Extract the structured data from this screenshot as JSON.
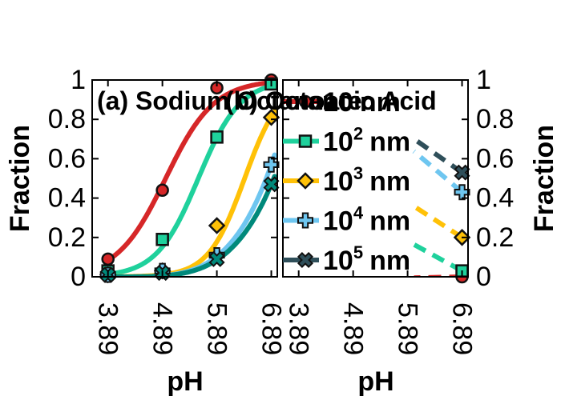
{
  "chart_data": [
    {
      "type": "line",
      "title": "(a) Sodium Octanoate",
      "xlabel": "pH",
      "ylabel": "Fraction",
      "x_ticks": [
        "3.89",
        "4.89",
        "5.89",
        "6.89"
      ],
      "y_ticks": [
        "0",
        "0.2",
        "0.4",
        "0.6",
        "0.8",
        "1"
      ],
      "xlim": [
        3.6,
        7.0
      ],
      "ylim": [
        0,
        1
      ],
      "x": [
        3.89,
        4.89,
        5.89,
        6.89
      ],
      "series": [
        {
          "color": "#d62728",
          "marker": "circle",
          "values": [
            0.09,
            0.44,
            0.96,
            1.0
          ]
        },
        {
          "color": "#1fd19c",
          "marker": "square",
          "values": [
            0.03,
            0.19,
            0.71,
            0.98
          ]
        },
        {
          "color": "#ffc107",
          "marker": "diamond",
          "values": [
            0.01,
            0.03,
            0.26,
            0.81
          ]
        },
        {
          "color": "#6ec6f0",
          "marker": "plus",
          "values": [
            0.01,
            0.03,
            0.11,
            0.57
          ]
        },
        {
          "color": "#00897b",
          "marker": "x",
          "values": [
            0.01,
            0.02,
            0.09,
            0.47
          ]
        }
      ]
    },
    {
      "type": "line",
      "title": "(b) Octanoic Acid",
      "xlabel": "pH",
      "ylabel": "Fraction",
      "x_ticks": [
        "3.89",
        "4.89",
        "5.89",
        "6.89"
      ],
      "y_ticks": [
        "0",
        "0.2",
        "0.4",
        "0.6",
        "0.8",
        "1"
      ],
      "xlim": [
        3.6,
        7.0
      ],
      "ylim": [
        0,
        1
      ],
      "x": [
        3.89,
        4.89,
        5.89,
        6.89
      ],
      "legend_position": "top-left",
      "series": [
        {
          "name_base": "10",
          "name_exp": "",
          "name_unit": "nm",
          "color": "#d62728",
          "marker": "circle",
          "values": [
            null,
            null,
            null,
            0.0
          ]
        },
        {
          "name_base": "10",
          "name_exp": "2",
          "name_unit": "nm",
          "color": "#1fd19c",
          "marker": "square",
          "values": [
            null,
            null,
            null,
            0.03
          ]
        },
        {
          "name_base": "10",
          "name_exp": "3",
          "name_unit": "nm",
          "color": "#ffc107",
          "marker": "diamond",
          "values": [
            null,
            null,
            null,
            0.2
          ]
        },
        {
          "name_base": "10",
          "name_exp": "4",
          "name_unit": "nm",
          "color": "#6ec6f0",
          "marker": "plus",
          "values": [
            null,
            null,
            null,
            0.43
          ]
        },
        {
          "name_base": "10",
          "name_exp": "5",
          "name_unit": "nm",
          "color": "#2f4f5a",
          "marker": "x",
          "values": [
            null,
            null,
            null,
            0.53
          ]
        }
      ]
    }
  ]
}
